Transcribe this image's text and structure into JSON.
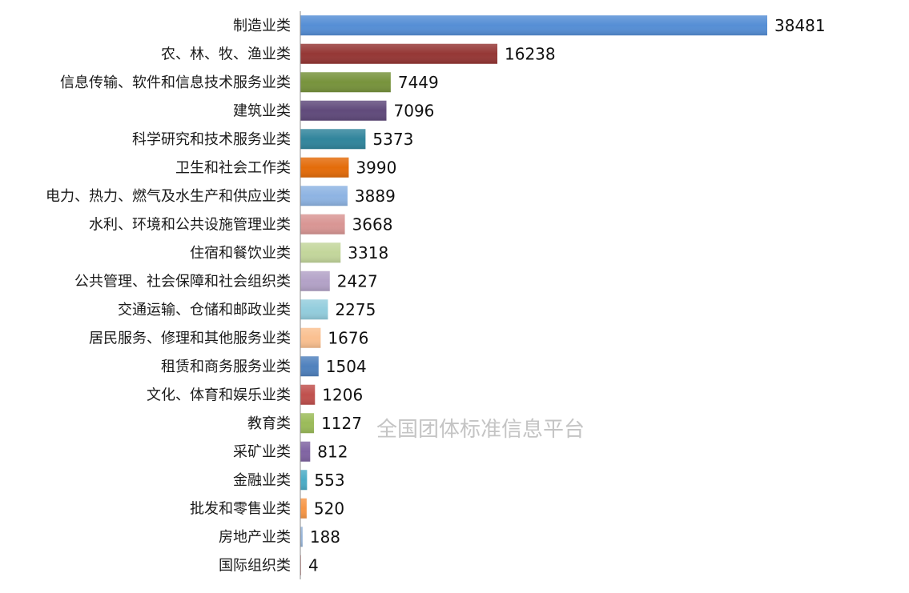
{
  "watermark": "全国团体标准信息平台",
  "chart_data": {
    "type": "bar",
    "orientation": "horizontal",
    "title": "",
    "xlabel": "",
    "ylabel": "",
    "xlim": [
      0,
      38481
    ],
    "grid": false,
    "legend": "none",
    "categories": [
      "制造业类",
      "农、林、牧、渔业类",
      "信息传输、软件和信息技术服务业类",
      "建筑业类",
      "科学研究和技术服务业类",
      "卫生和社会工作类",
      "电力、热力、燃气及水生产和供应业类",
      "水利、环境和公共设施管理业类",
      "住宿和餐饮业类",
      "公共管理、社会保障和社会组织类",
      "交通运输、仓储和邮政业类",
      "居民服务、修理和其他服务业类",
      "租赁和商务服务业类",
      "文化、体育和娱乐业类",
      "教育类",
      "采矿业类",
      "金融业类",
      "批发和零售业类",
      "房地产业类",
      "国际组织类"
    ],
    "values": [
      38481,
      16238,
      7449,
      7096,
      5373,
      3990,
      3889,
      3668,
      3318,
      2427,
      2275,
      1676,
      1504,
      1206,
      1127,
      812,
      553,
      520,
      188,
      4
    ],
    "colors": [
      "#558ed5",
      "#953735",
      "#77933c",
      "#604a7b",
      "#31859c",
      "#e46c0a",
      "#8eb4e3",
      "#d99694",
      "#c3d69b",
      "#b3a2c7",
      "#93cddd",
      "#fac090",
      "#4f81bd",
      "#c0504d",
      "#9bbb59",
      "#8064a2",
      "#4bacc6",
      "#f79646",
      "#95b3d7",
      "#d99694"
    ]
  }
}
